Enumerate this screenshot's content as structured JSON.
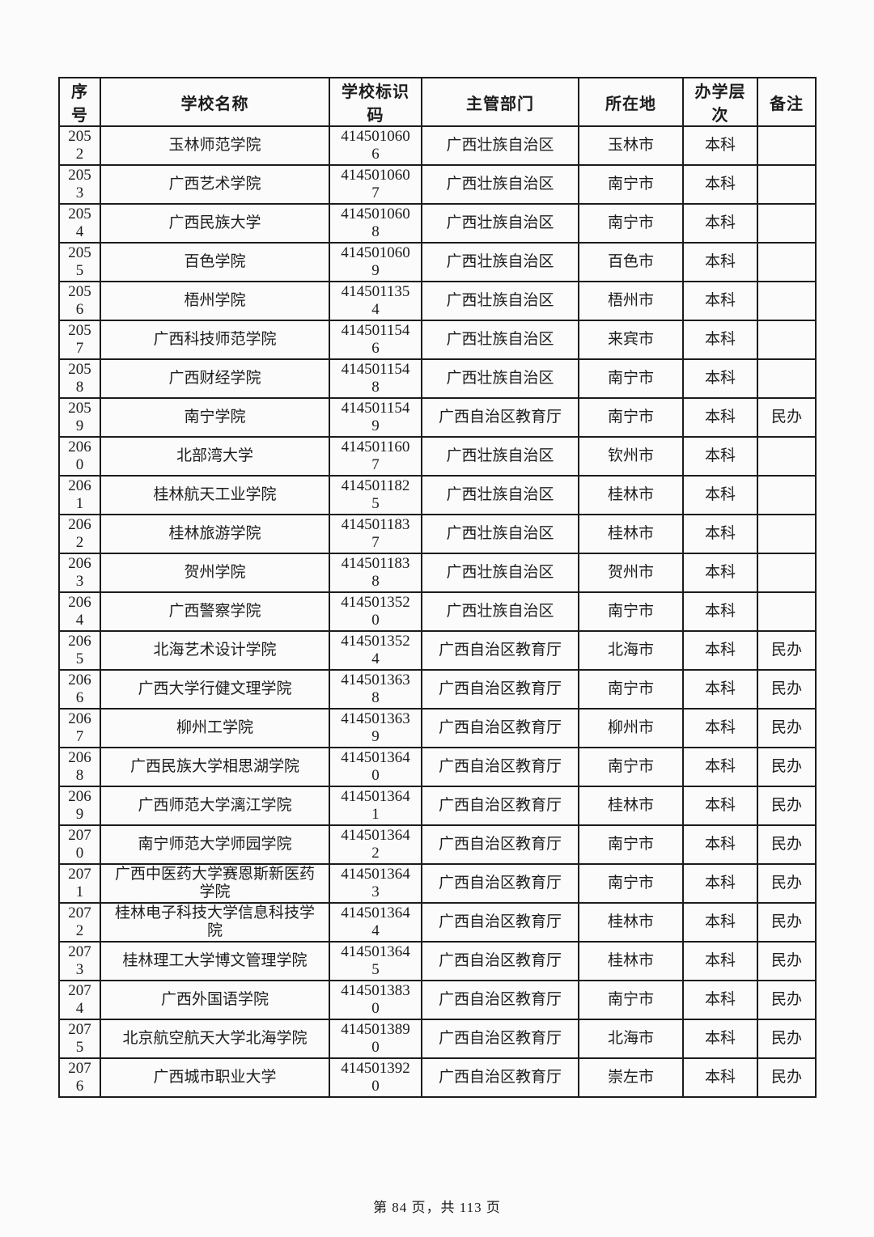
{
  "table": {
    "headers": [
      "序号",
      "学校名称",
      "学校标识码",
      "主管部门",
      "所在地",
      "办学层次",
      "备注"
    ],
    "rows": [
      [
        "2052",
        "玉林师范学院",
        "4145010606",
        "广西壮族自治区",
        "玉林市",
        "本科",
        ""
      ],
      [
        "2053",
        "广西艺术学院",
        "4145010607",
        "广西壮族自治区",
        "南宁市",
        "本科",
        ""
      ],
      [
        "2054",
        "广西民族大学",
        "4145010608",
        "广西壮族自治区",
        "南宁市",
        "本科",
        ""
      ],
      [
        "2055",
        "百色学院",
        "4145010609",
        "广西壮族自治区",
        "百色市",
        "本科",
        ""
      ],
      [
        "2056",
        "梧州学院",
        "4145011354",
        "广西壮族自治区",
        "梧州市",
        "本科",
        ""
      ],
      [
        "2057",
        "广西科技师范学院",
        "4145011546",
        "广西壮族自治区",
        "来宾市",
        "本科",
        ""
      ],
      [
        "2058",
        "广西财经学院",
        "4145011548",
        "广西壮族自治区",
        "南宁市",
        "本科",
        ""
      ],
      [
        "2059",
        "南宁学院",
        "4145011549",
        "广西自治区教育厅",
        "南宁市",
        "本科",
        "民办"
      ],
      [
        "2060",
        "北部湾大学",
        "4145011607",
        "广西壮族自治区",
        "钦州市",
        "本科",
        ""
      ],
      [
        "2061",
        "桂林航天工业学院",
        "4145011825",
        "广西壮族自治区",
        "桂林市",
        "本科",
        ""
      ],
      [
        "2062",
        "桂林旅游学院",
        "4145011837",
        "广西壮族自治区",
        "桂林市",
        "本科",
        ""
      ],
      [
        "2063",
        "贺州学院",
        "4145011838",
        "广西壮族自治区",
        "贺州市",
        "本科",
        ""
      ],
      [
        "2064",
        "广西警察学院",
        "4145013520",
        "广西壮族自治区",
        "南宁市",
        "本科",
        ""
      ],
      [
        "2065",
        "北海艺术设计学院",
        "4145013524",
        "广西自治区教育厅",
        "北海市",
        "本科",
        "民办"
      ],
      [
        "2066",
        "广西大学行健文理学院",
        "4145013638",
        "广西自治区教育厅",
        "南宁市",
        "本科",
        "民办"
      ],
      [
        "2067",
        "柳州工学院",
        "4145013639",
        "广西自治区教育厅",
        "柳州市",
        "本科",
        "民办"
      ],
      [
        "2068",
        "广西民族大学相思湖学院",
        "4145013640",
        "广西自治区教育厅",
        "南宁市",
        "本科",
        "民办"
      ],
      [
        "2069",
        "广西师范大学漓江学院",
        "4145013641",
        "广西自治区教育厅",
        "桂林市",
        "本科",
        "民办"
      ],
      [
        "2070",
        "南宁师范大学师园学院",
        "4145013642",
        "广西自治区教育厅",
        "南宁市",
        "本科",
        "民办"
      ],
      [
        "2071",
        "广西中医药大学赛恩斯新医药学院",
        "4145013643",
        "广西自治区教育厅",
        "南宁市",
        "本科",
        "民办"
      ],
      [
        "2072",
        "桂林电子科技大学信息科技学院",
        "4145013644",
        "广西自治区教育厅",
        "桂林市",
        "本科",
        "民办"
      ],
      [
        "2073",
        "桂林理工大学博文管理学院",
        "4145013645",
        "广西自治区教育厅",
        "桂林市",
        "本科",
        "民办"
      ],
      [
        "2074",
        "广西外国语学院",
        "4145013830",
        "广西自治区教育厅",
        "南宁市",
        "本科",
        "民办"
      ],
      [
        "2075",
        "北京航空航天大学北海学院",
        "4145013890",
        "广西自治区教育厅",
        "北海市",
        "本科",
        "民办"
      ],
      [
        "2076",
        "广西城市职业大学",
        "4145013920",
        "广西自治区教育厅",
        "崇左市",
        "本科",
        "民办"
      ]
    ]
  },
  "footer": {
    "page_indicator": "第 84 页，共 113 页"
  }
}
